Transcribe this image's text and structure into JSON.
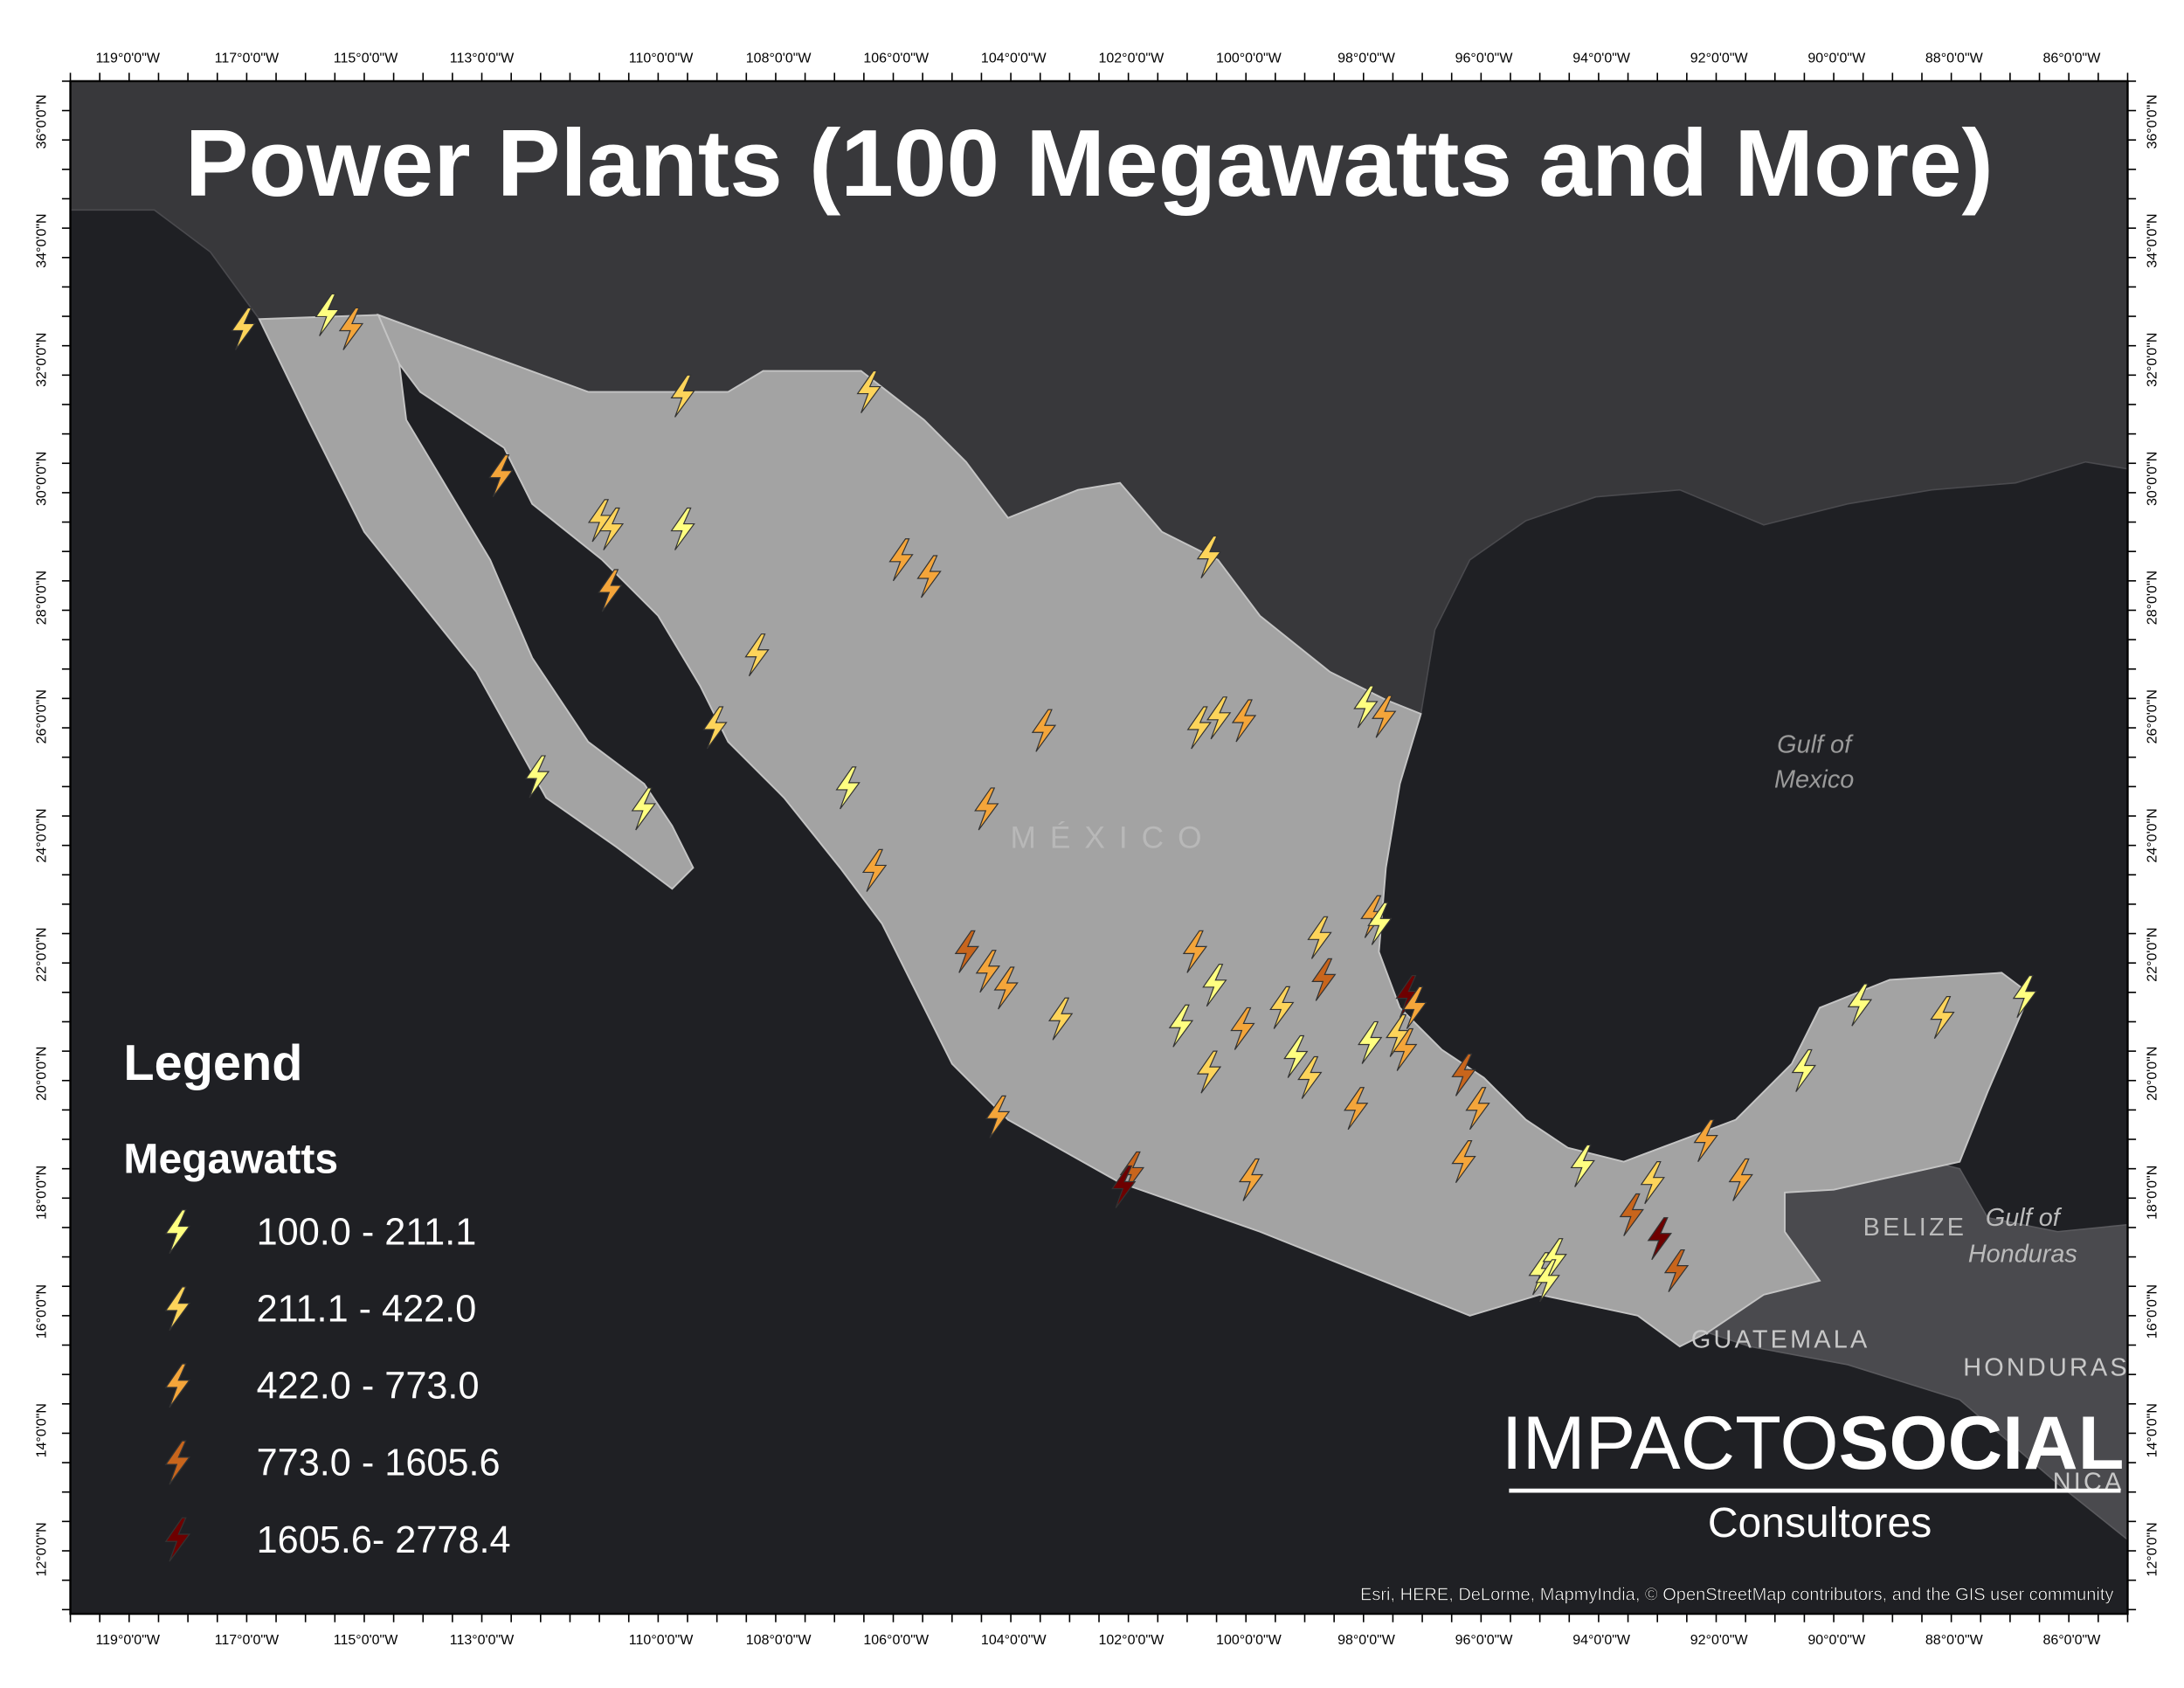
{
  "title": "Power Plants (100 Megawatts and More)",
  "longitude_labels": [
    "119°0'0\"W",
    "117°0'0\"W",
    "115°0'0\"W",
    "113°0'0\"W",
    "110°0'0\"W",
    "108°0'0\"W",
    "106°0'0\"W",
    "104°0'0\"W",
    "102°0'0\"W",
    "100°0'0\"W",
    "98°0'0\"W",
    "96°0'0\"W",
    "94°0'0\"W",
    "92°0'0\"W",
    "90°0'0\"W",
    "88°0'0\"W",
    "86°0'0\"W"
  ],
  "latitude_labels": [
    "36°0'0\"N",
    "34°0'0\"N",
    "32°0'0\"N",
    "30°0'0\"N",
    "28°0'0\"N",
    "26°0'0\"N",
    "24°0'0\"N",
    "22°0'0\"N",
    "20°0'0\"N",
    "18°0'0\"N",
    "16°0'0\"N",
    "14°0'0\"N",
    "12°0'0\"N"
  ],
  "legend": {
    "title": "Legend",
    "subtitle": "Megawatts",
    "classes": [
      "100.0 - 211.1",
      "211.1 - 422.0",
      "422.0 - 773.0",
      "773.0 - 1605.6",
      "1605.6- 2778.4"
    ]
  },
  "place_labels": {
    "mexico": "MÉXICO",
    "gulf_of_mexico": [
      "Gulf of",
      "Mexico"
    ],
    "belize": "BELIZE",
    "gulf_of_honduras": [
      "Gulf of",
      "Honduras"
    ],
    "guatemala": "GUATEMALA",
    "honduras": "HONDURAS",
    "nicaragua": "NICA"
  },
  "logo": {
    "name_light": "IMPACTO",
    "name_bold": "SOCIAL",
    "tagline": "Consultores"
  },
  "attribution": "Esri, HERE, DeLorme, MapmyIndia, © OpenStreetMap contributors, and the GIS user community"
}
